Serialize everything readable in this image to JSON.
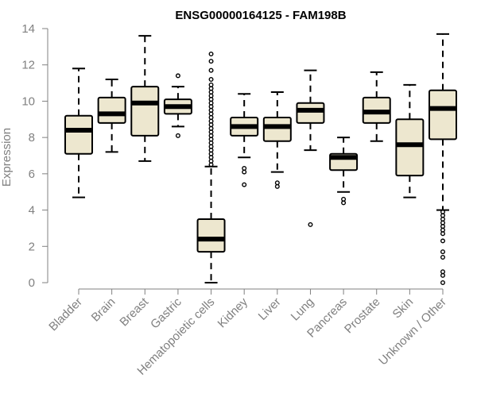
{
  "chart_data": {
    "type": "boxplot",
    "title": "ENSG00000164125 - FAM198B",
    "xlabel": "",
    "ylabel": "Expression",
    "ylim": [
      0,
      14
    ],
    "yticks": [
      0,
      2,
      4,
      6,
      8,
      10,
      12,
      14
    ],
    "box_fill": "#EDE7CF",
    "categories": [
      "Bladder",
      "Brain",
      "Breast",
      "Gastric",
      "Hematopoietic cells",
      "Kidney",
      "Liver",
      "Lung",
      "Pancreas",
      "Prostate",
      "Skin",
      "Unknown / Other"
    ],
    "series": [
      {
        "name": "Bladder",
        "whisker_low": 4.7,
        "q1": 7.1,
        "median": 8.4,
        "q3": 9.2,
        "whisker_high": 11.8,
        "outliers": []
      },
      {
        "name": "Brain",
        "whisker_low": 7.2,
        "q1": 8.8,
        "median": 9.3,
        "q3": 10.2,
        "whisker_high": 11.2,
        "outliers": []
      },
      {
        "name": "Breast",
        "whisker_low": 6.7,
        "q1": 8.1,
        "median": 9.9,
        "q3": 10.8,
        "whisker_high": 13.6,
        "outliers": []
      },
      {
        "name": "Gastric",
        "whisker_low": 8.6,
        "q1": 9.3,
        "median": 9.7,
        "q3": 10.1,
        "whisker_high": 10.8,
        "outliers": [
          11.4,
          8.1
        ]
      },
      {
        "name": "Hematopoietic cells",
        "whisker_low": 0.0,
        "q1": 1.7,
        "median": 2.4,
        "q3": 3.5,
        "whisker_high": 6.4,
        "outliers": [
          12.6,
          12.2,
          11.7,
          11.2,
          10.9,
          10.7,
          10.5,
          10.3,
          10.1,
          9.9,
          9.7,
          9.5,
          9.3,
          9.1,
          8.9,
          8.7,
          8.5,
          8.3,
          8.1,
          7.9,
          7.7,
          7.5,
          7.3,
          7.1,
          6.9,
          6.7,
          6.5
        ]
      },
      {
        "name": "Kidney",
        "whisker_low": 6.9,
        "q1": 8.1,
        "median": 8.6,
        "q3": 9.1,
        "whisker_high": 10.4,
        "outliers": [
          6.3,
          6.1,
          5.4
        ]
      },
      {
        "name": "Liver",
        "whisker_low": 6.1,
        "q1": 7.8,
        "median": 8.6,
        "q3": 9.1,
        "whisker_high": 10.5,
        "outliers": [
          5.5,
          5.3
        ]
      },
      {
        "name": "Lung",
        "whisker_low": 7.3,
        "q1": 8.8,
        "median": 9.5,
        "q3": 9.9,
        "whisker_high": 11.7,
        "outliers": [
          3.2
        ]
      },
      {
        "name": "Pancreas",
        "whisker_low": 5.0,
        "q1": 6.2,
        "median": 6.9,
        "q3": 7.1,
        "whisker_high": 8.0,
        "outliers": [
          4.6,
          4.4
        ]
      },
      {
        "name": "Prostate",
        "whisker_low": 7.8,
        "q1": 8.8,
        "median": 9.4,
        "q3": 10.2,
        "whisker_high": 11.6,
        "outliers": []
      },
      {
        "name": "Skin",
        "whisker_low": 4.7,
        "q1": 5.9,
        "median": 7.6,
        "q3": 9.0,
        "whisker_high": 10.9,
        "outliers": []
      },
      {
        "name": "Unknown / Other",
        "whisker_low": 4.0,
        "q1": 7.9,
        "median": 9.6,
        "q3": 10.6,
        "whisker_high": 13.7,
        "outliers": [
          3.9,
          3.7,
          3.5,
          3.3,
          3.1,
          2.9,
          2.7,
          2.3,
          1.7,
          1.4,
          0.6,
          0.4,
          0.0
        ]
      }
    ]
  }
}
